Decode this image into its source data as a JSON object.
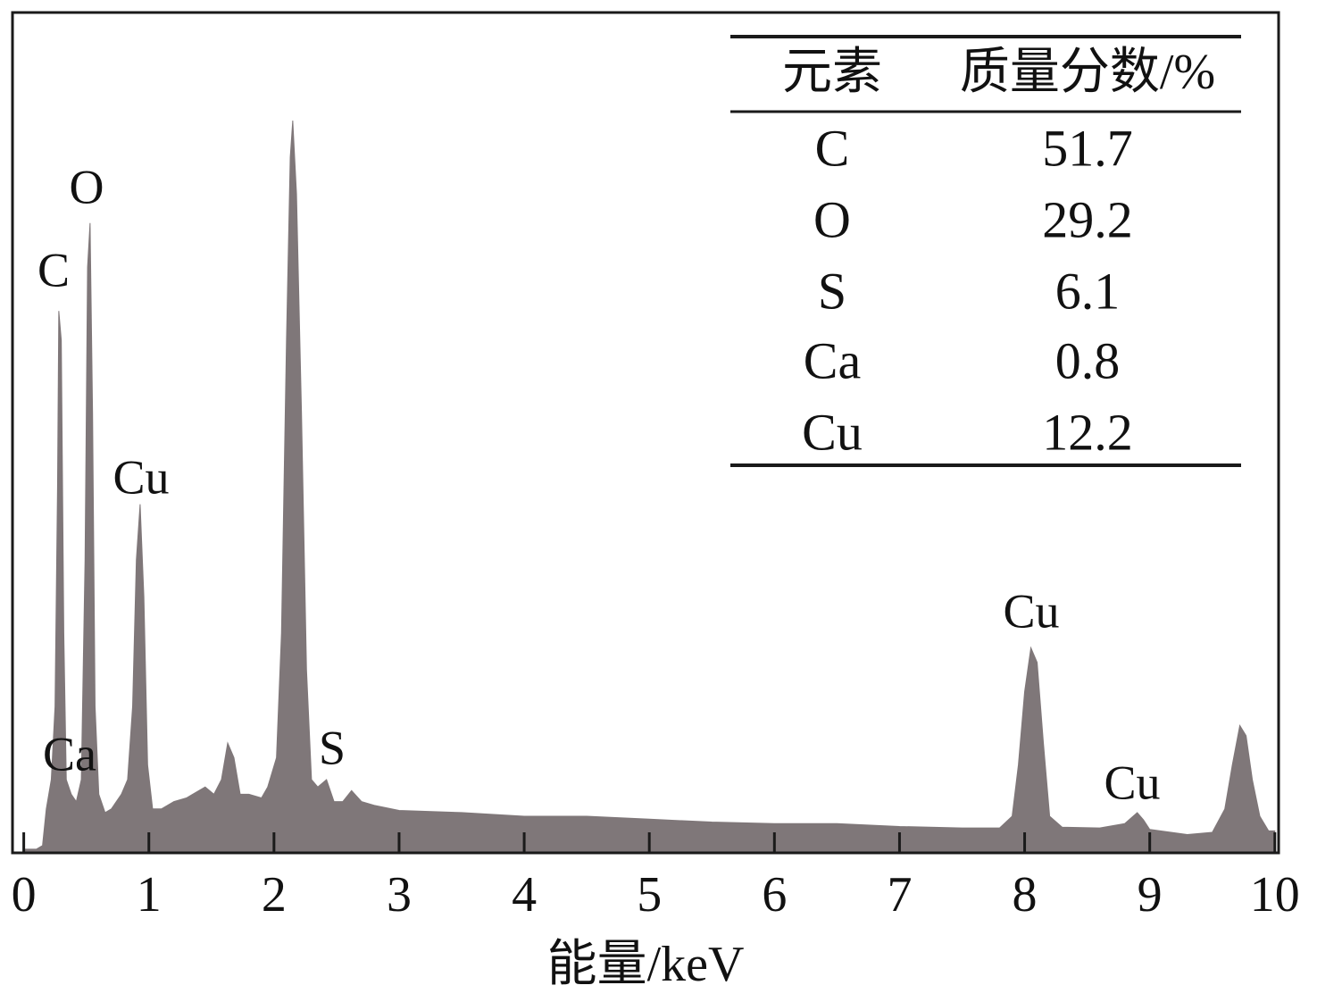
{
  "chart_data": {
    "type": "area",
    "xlabel": "能量/keV",
    "color": "#7f7779",
    "xlim": [
      -0.09,
      10.03
    ],
    "ylim": [
      0,
      100
    ],
    "xticks": [
      0,
      1,
      2,
      3,
      4,
      5,
      6,
      7,
      8,
      9,
      10
    ],
    "x": [
      0,
      0.1,
      0.15,
      0.18,
      0.22,
      0.25,
      0.27,
      0.28,
      0.3,
      0.32,
      0.34,
      0.38,
      0.42,
      0.46,
      0.49,
      0.51,
      0.53,
      0.55,
      0.57,
      0.6,
      0.65,
      0.7,
      0.78,
      0.83,
      0.87,
      0.9,
      0.93,
      0.96,
      0.99,
      1.03,
      1.1,
      1.2,
      1.3,
      1.4,
      1.45,
      1.52,
      1.58,
      1.63,
      1.68,
      1.73,
      1.8,
      1.9,
      1.95,
      2.02,
      2.06,
      2.1,
      2.13,
      2.15,
      2.18,
      2.22,
      2.26,
      2.3,
      2.35,
      2.42,
      2.48,
      2.55,
      2.62,
      2.7,
      2.8,
      3.0,
      3.5,
      4.0,
      4.5,
      5.0,
      5.5,
      6.0,
      6.5,
      7.0,
      7.5,
      7.8,
      7.9,
      7.95,
      8.0,
      8.05,
      8.1,
      8.15,
      8.2,
      8.3,
      8.6,
      8.8,
      8.9,
      8.95,
      9.0,
      9.3,
      9.5,
      9.6,
      9.66,
      9.72,
      9.77,
      9.82,
      9.88,
      9.95,
      10
    ],
    "values": [
      0.5,
      0.5,
      1,
      6,
      10,
      20,
      50,
      74,
      70,
      30,
      10,
      8,
      7,
      10,
      40,
      80,
      86,
      60,
      20,
      8,
      5.5,
      6,
      8,
      10,
      20,
      40,
      47.6,
      35,
      12,
      6,
      6,
      7,
      7.5,
      8.5,
      9,
      8,
      10,
      15,
      13,
      8,
      8,
      7.5,
      9,
      13,
      30,
      70,
      95,
      100,
      90,
      60,
      25,
      10,
      9,
      10,
      7,
      7,
      8.5,
      7,
      6.5,
      5.8,
      5.5,
      5,
      5,
      4.6,
      4.2,
      4,
      4,
      3.6,
      3.4,
      3.4,
      5,
      12,
      22,
      28,
      26,
      15,
      5,
      3.5,
      3.4,
      4,
      5.5,
      4.5,
      3.2,
      2.5,
      2.8,
      6,
      12,
      17.4,
      16,
      10,
      5,
      3,
      3
    ],
    "peak_labels": [
      "O",
      "C",
      "Cu",
      "Ca",
      "S",
      "Cu",
      "Cu"
    ]
  },
  "table": {
    "header": [
      "元素",
      "质量分数/%"
    ],
    "rows": [
      [
        "C",
        51.7
      ],
      [
        "O",
        29.2
      ],
      [
        "S",
        6.1
      ],
      [
        "Ca",
        0.8
      ],
      [
        "Cu",
        12.2
      ]
    ]
  }
}
